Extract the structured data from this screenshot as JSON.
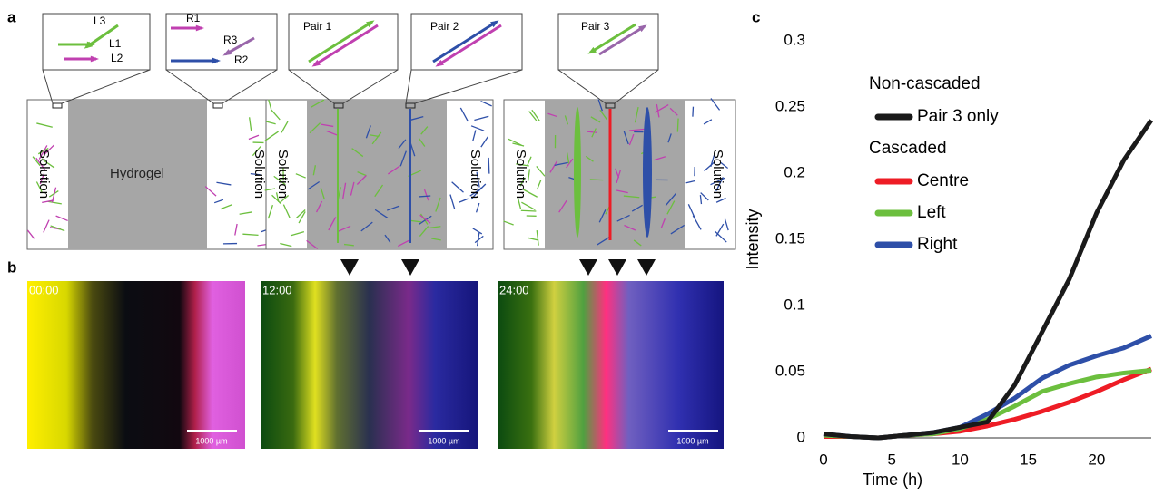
{
  "panel_labels": [
    "a",
    "b",
    "c"
  ],
  "schematic": {
    "zoom_labels": [
      "L3",
      "L1",
      "L2",
      "R1",
      "R3",
      "R2",
      "Pair 1",
      "Pair 2",
      "Pair 3"
    ],
    "solution": "Solution",
    "hydrogel": "Hydrogel"
  },
  "micrographs": {
    "timestamps": [
      "00:00",
      "12:00",
      "24:00"
    ],
    "scale_bar": "1000 µm"
  },
  "chart_data": {
    "type": "line",
    "xlabel": "Time (h)",
    "ylabel": "Intensity",
    "x": [
      0,
      2,
      4,
      6,
      8,
      10,
      12,
      14,
      16,
      18,
      20,
      22,
      24
    ],
    "legend_groups": [
      "Non-cascaded",
      "Cascaded"
    ],
    "series": [
      {
        "name": "Pair 3 only",
        "color": "#1a1a1a",
        "values": [
          0.003,
          0.001,
          0,
          0.002,
          0.004,
          0.008,
          0.012,
          0.04,
          0.08,
          0.12,
          0.17,
          0.21,
          0.24
        ]
      },
      {
        "name": "Centre",
        "color": "#ee1c25",
        "values": [
          0.001,
          0.001,
          0,
          0.002,
          0.003,
          0.005,
          0.009,
          0.014,
          0.02,
          0.027,
          0.035,
          0.044,
          0.052
        ]
      },
      {
        "name": "Left",
        "color": "#6cbf3e",
        "values": [
          0.002,
          0.001,
          0,
          0.002,
          0.003,
          0.007,
          0.014,
          0.024,
          0.035,
          0.041,
          0.046,
          0.049,
          0.051
        ]
      },
      {
        "name": "Right",
        "color": "#2e4fa8",
        "values": [
          0.003,
          0.001,
          0,
          0.002,
          0.004,
          0.008,
          0.018,
          0.03,
          0.045,
          0.055,
          0.062,
          0.068,
          0.077
        ]
      }
    ],
    "xlim": [
      0,
      24
    ],
    "xticks": [
      0,
      5,
      10,
      15,
      20
    ],
    "ylim": [
      0,
      0.3
    ],
    "yticks": [
      0,
      0.05,
      0.1,
      0.15,
      0.2,
      0.25,
      0.3
    ]
  }
}
